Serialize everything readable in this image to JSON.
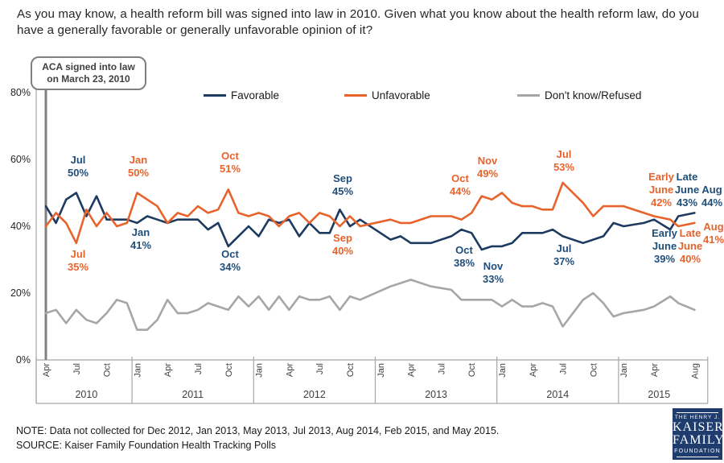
{
  "title": "As you may know, a health reform bill was signed into law in 2010. Given what you know about the health reform law, do you have a generally favorable or generally unfavorable opinion of it?",
  "callout": {
    "line1": "ACA signed into law",
    "line2": "on March 23, 2010"
  },
  "note": "NOTE: Data not collected for Dec 2012, Jan 2013, May 2013, Jul 2013, Aug 2014, Feb 2015, and May 2015.",
  "source": "SOURCE: Kaiser Family Foundation Health Tracking Polls",
  "logo": {
    "top": "THE HENRY J.",
    "name1": "KAISER",
    "name2": "FAMILY",
    "bottom": "FOUNDATION"
  },
  "chart_data": {
    "type": "line",
    "title": "Opinion of the health reform law over time",
    "xlabel": "",
    "ylabel": "",
    "ylim": [
      0,
      80
    ],
    "grid": false,
    "legend_position": "top",
    "y_ticks": [
      {
        "value": 80,
        "label": "80%"
      },
      {
        "value": 60,
        "label": "60%"
      },
      {
        "value": 40,
        "label": "40%"
      },
      {
        "value": 20,
        "label": "20%"
      },
      {
        "value": 0,
        "label": "0%"
      }
    ],
    "x_ticks": [
      {
        "i": 0,
        "label": "Apr"
      },
      {
        "i": 3,
        "label": "Jul"
      },
      {
        "i": 6,
        "label": "Oct"
      },
      {
        "i": 9,
        "label": "Jan"
      },
      {
        "i": 12,
        "label": "Apr"
      },
      {
        "i": 15,
        "label": "Jul"
      },
      {
        "i": 18,
        "label": "Oct"
      },
      {
        "i": 21,
        "label": "Jan"
      },
      {
        "i": 24,
        "label": "Apr"
      },
      {
        "i": 27,
        "label": "Jul"
      },
      {
        "i": 30,
        "label": "Oct"
      },
      {
        "i": 33,
        "label": "Jan"
      },
      {
        "i": 36,
        "label": "Apr"
      },
      {
        "i": 39,
        "label": "Jul"
      },
      {
        "i": 42,
        "label": "Oct"
      },
      {
        "i": 45,
        "label": "Jan"
      },
      {
        "i": 48,
        "label": "Apr"
      },
      {
        "i": 51,
        "label": "Jul"
      },
      {
        "i": 54,
        "label": "Oct"
      },
      {
        "i": 57,
        "label": "Jan"
      },
      {
        "i": 60,
        "label": "Apr"
      },
      {
        "i": 64,
        "label": "Aug"
      }
    ],
    "year_groups": [
      {
        "label": "2010",
        "center_i": 4
      },
      {
        "label": "2011",
        "center_i": 14.5
      },
      {
        "label": "2012",
        "center_i": 26.5
      },
      {
        "label": "2013",
        "center_i": 38.5
      },
      {
        "label": "2014",
        "center_i": 50.5
      },
      {
        "label": "2015",
        "center_i": 60.5
      }
    ],
    "year_separators_i": [
      -0.95,
      8.5,
      20.5,
      32.5,
      44.5,
      56.5,
      65.3
    ],
    "aca_x_i": 0,
    "x_note": "x = months since Apr 2010; gaps kept for months not polled; 61.6 = Early June 2015, 62.4 = Late June 2015",
    "x": [
      0,
      1,
      2,
      3,
      4,
      5,
      6,
      7,
      8,
      9,
      10,
      11,
      12,
      13,
      14,
      15,
      16,
      17,
      18,
      19,
      20,
      21,
      22,
      23,
      24,
      25,
      26,
      27,
      28,
      29,
      30,
      31,
      34,
      35,
      36,
      38,
      40,
      41,
      42,
      43,
      44,
      45,
      46,
      47,
      48,
      49,
      50,
      51,
      53,
      54,
      55,
      56,
      57,
      59,
      60,
      61.6,
      62.4,
      64
    ],
    "series": [
      {
        "name": "Favorable",
        "color": "#1d3a5f",
        "values": [
          46,
          41,
          48,
          50,
          43,
          49,
          42,
          42,
          42,
          41,
          43,
          42,
          41,
          42,
          42,
          42,
          39,
          41,
          34,
          37,
          40,
          37,
          42,
          41,
          42,
          37,
          41,
          38,
          38,
          45,
          40,
          42,
          36,
          37,
          35,
          35,
          37,
          39,
          38,
          33,
          34,
          34,
          35,
          38,
          38,
          38,
          39,
          37,
          35,
          36,
          37,
          41,
          40,
          41,
          42,
          39,
          43,
          44
        ]
      },
      {
        "name": "Unfavorable",
        "color": "#e8632c",
        "values": [
          40,
          44,
          41,
          35,
          45,
          40,
          44,
          40,
          41,
          50,
          48,
          46,
          41,
          44,
          43,
          46,
          44,
          45,
          51,
          44,
          43,
          44,
          43,
          40,
          43,
          44,
          41,
          44,
          43,
          40,
          43,
          40,
          42,
          41,
          41,
          43,
          43,
          42,
          44,
          49,
          48,
          50,
          47,
          46,
          46,
          45,
          45,
          53,
          47,
          43,
          46,
          46,
          46,
          44,
          43,
          42,
          40,
          41
        ]
      },
      {
        "name": "Don't know/Refused",
        "color": "#a6a6a6",
        "values": [
          14,
          15,
          11,
          15,
          12,
          11,
          14,
          18,
          17,
          9,
          9,
          12,
          18,
          14,
          14,
          15,
          17,
          16,
          15,
          19,
          16,
          19,
          15,
          19,
          15,
          19,
          18,
          18,
          19,
          15,
          19,
          18,
          22,
          23,
          24,
          22,
          21,
          18,
          18,
          18,
          18,
          16,
          18,
          16,
          16,
          17,
          16,
          10,
          18,
          20,
          17,
          13,
          14,
          15,
          16,
          19,
          17,
          15
        ]
      }
    ],
    "annotation_colors": {
      "fav": "#1f4e79",
      "unf": "#e8632c"
    },
    "point_labels": [
      {
        "series": "fav",
        "x": 97,
        "y": 203,
        "lines": [
          "Jul",
          "50%"
        ]
      },
      {
        "series": "unf",
        "x": 97,
        "y": 320,
        "lines": [
          "Jul",
          "35%"
        ]
      },
      {
        "series": "unf",
        "x": 172,
        "y": 203,
        "lines": [
          "Jan",
          "50%"
        ]
      },
      {
        "series": "fav",
        "x": 175,
        "y": 293,
        "lines": [
          "Jan",
          "41%"
        ]
      },
      {
        "series": "unf",
        "x": 286,
        "y": 198,
        "lines": [
          "Oct",
          "51%"
        ]
      },
      {
        "series": "fav",
        "x": 286,
        "y": 320,
        "lines": [
          "Oct",
          "34%"
        ]
      },
      {
        "series": "fav",
        "x": 426,
        "y": 226,
        "lines": [
          "Sep",
          "45%"
        ]
      },
      {
        "series": "unf",
        "x": 426,
        "y": 300,
        "lines": [
          "Sep",
          "40%"
        ]
      },
      {
        "series": "unf",
        "x": 572,
        "y": 226,
        "lines": [
          "Oct",
          "44%"
        ]
      },
      {
        "series": "unf",
        "x": 606,
        "y": 204,
        "lines": [
          "Nov",
          "49%"
        ]
      },
      {
        "series": "fav",
        "x": 577,
        "y": 315,
        "lines": [
          "Oct",
          "38%"
        ]
      },
      {
        "series": "fav",
        "x": 613,
        "y": 335,
        "lines": [
          "Nov",
          "33%"
        ]
      },
      {
        "series": "unf",
        "x": 701,
        "y": 196,
        "lines": [
          "Jul",
          "53%"
        ]
      },
      {
        "series": "fav",
        "x": 701,
        "y": 313,
        "lines": [
          "Jul",
          "37%"
        ]
      },
      {
        "series": "unf",
        "x": 822,
        "y": 224,
        "lines": [
          "Early",
          "June",
          "42%"
        ]
      },
      {
        "series": "fav",
        "x": 854,
        "y": 224,
        "lines": [
          "Late",
          "June",
          "43%"
        ]
      },
      {
        "series": "fav",
        "x": 885,
        "y": 240,
        "lines": [
          "Aug",
          "44%"
        ]
      },
      {
        "series": "fav",
        "x": 826,
        "y": 294,
        "lines": [
          "Early",
          "June",
          "39%"
        ]
      },
      {
        "series": "unf",
        "x": 858,
        "y": 294,
        "lines": [
          "Late",
          "June",
          "40%"
        ]
      },
      {
        "series": "unf",
        "x": 887,
        "y": 286,
        "lines": [
          "Aug",
          "41%"
        ]
      }
    ]
  }
}
